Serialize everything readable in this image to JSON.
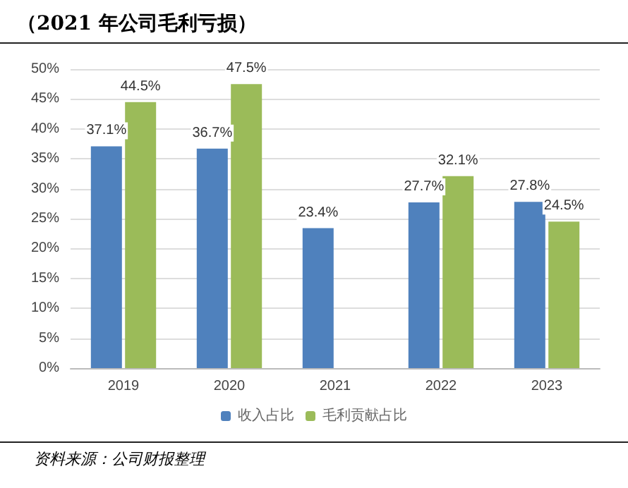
{
  "chart_data": {
    "type": "bar",
    "title": "（2021 年公司毛利亏损）",
    "categories": [
      "2019",
      "2020",
      "2021",
      "2022",
      "2023"
    ],
    "series": [
      {
        "name": "收入占比",
        "color": "#4f81bd",
        "values": [
          37.1,
          36.7,
          23.4,
          27.7,
          27.8
        ],
        "value_labels": [
          "37.1%",
          "36.7%",
          "23.4%",
          "27.7%",
          "27.8%"
        ]
      },
      {
        "name": "毛利贡献占比",
        "color": "#9bbb59",
        "values": [
          44.5,
          47.5,
          null,
          32.1,
          24.5
        ],
        "value_labels": [
          "44.5%",
          "47.5%",
          null,
          "32.1%",
          "24.5%"
        ]
      }
    ],
    "ylim": [
      0,
      50
    ],
    "yticks": [
      {
        "value": 0,
        "label": "0%"
      },
      {
        "value": 5,
        "label": "5%"
      },
      {
        "value": 10,
        "label": "10%"
      },
      {
        "value": 15,
        "label": "15%"
      },
      {
        "value": 20,
        "label": "20%"
      },
      {
        "value": 25,
        "label": "25%"
      },
      {
        "value": 30,
        "label": "30%"
      },
      {
        "value": 35,
        "label": "35%"
      },
      {
        "value": 40,
        "label": "40%"
      },
      {
        "value": 45,
        "label": "45%"
      },
      {
        "value": 50,
        "label": "50%"
      }
    ],
    "grid": "y",
    "legend": "bottom",
    "annotations": [
      "资料来源：公司财报整理"
    ]
  }
}
